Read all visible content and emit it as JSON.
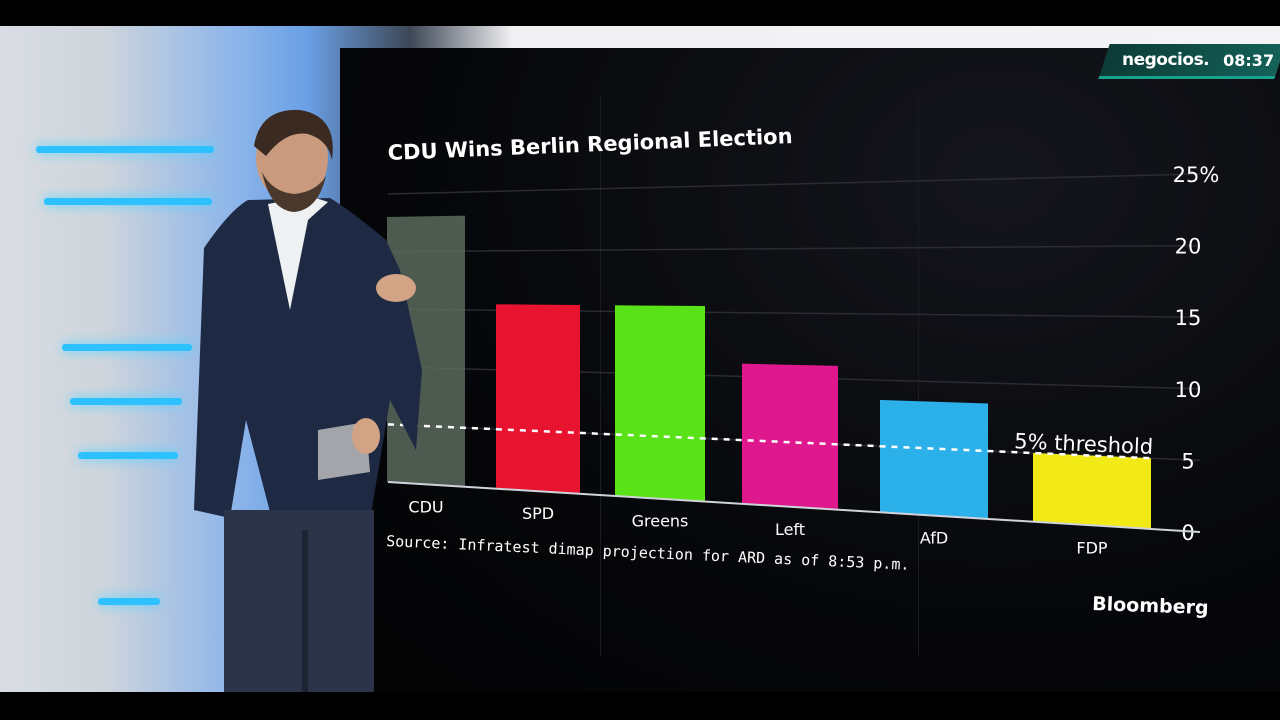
{
  "broadcast": {
    "channel": "negocios.",
    "time": "08:37"
  },
  "graphic": {
    "source": "Source: Infratest dimap projection for ARD as of 8:53 p.m.",
    "threshold_label": "5% threshold",
    "threshold_value": 5,
    "logo": "Bloomberg"
  },
  "colors": {
    "CDU": "#5a6a5c",
    "SPD": "#e8142f",
    "Greens": "#59e218",
    "Left": "#e0188e",
    "AfD": "#2cb0ea",
    "FDP": "#f2ea16"
  },
  "chart_data": {
    "type": "bar",
    "title": "CDU Wins Berlin Regional Election",
    "categories": [
      "CDU",
      "SPD",
      "Greens",
      "Left",
      "AfD",
      "FDP"
    ],
    "values": [
      23,
      15.5,
      15.5,
      11,
      8.5,
      5
    ],
    "ylim": [
      0,
      25
    ],
    "yticks": [
      "25%",
      "20",
      "15",
      "10",
      "5",
      "0"
    ],
    "ytick_values": [
      25,
      20,
      15,
      10,
      5,
      0
    ],
    "xlabel": "",
    "ylabel": "",
    "grid": true,
    "legend": "none"
  }
}
